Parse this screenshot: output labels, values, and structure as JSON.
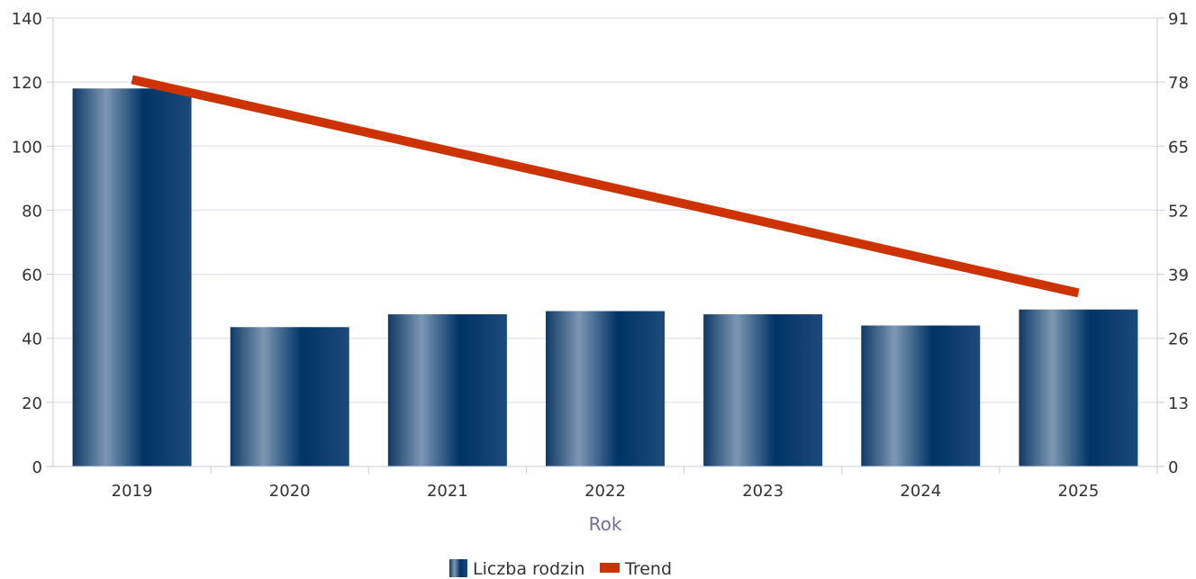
{
  "chart_data": {
    "type": "bar",
    "title": "",
    "xlabel": "Rok",
    "categories": [
      "2019",
      "2020",
      "2021",
      "2022",
      "2023",
      "2024",
      "2025"
    ],
    "series": [
      {
        "name": "Liczba rodzin",
        "type": "bar",
        "axis": "left",
        "values": [
          118,
          43.5,
          47.5,
          48.5,
          47.5,
          44,
          49
        ]
      },
      {
        "name": "Trend",
        "type": "line",
        "axis": "right",
        "values": [
          78.5,
          71.3,
          64.1,
          56.9,
          49.7,
          42.4,
          35.2
        ]
      }
    ],
    "y_left": {
      "min": 0,
      "max": 140,
      "ticks": [
        0,
        20,
        40,
        60,
        80,
        100,
        120,
        140
      ]
    },
    "y_right": {
      "min": 0,
      "max": 91,
      "ticks": [
        0,
        13,
        26,
        39,
        52,
        65,
        78,
        91
      ]
    },
    "grid": true,
    "legend_position": "bottom",
    "colors": {
      "bar_dark": "#003366",
      "bar_light": "#7d97b3",
      "trend": "#cc3300",
      "grid": "#d9dce8",
      "xlabel": "#6f719c"
    }
  }
}
